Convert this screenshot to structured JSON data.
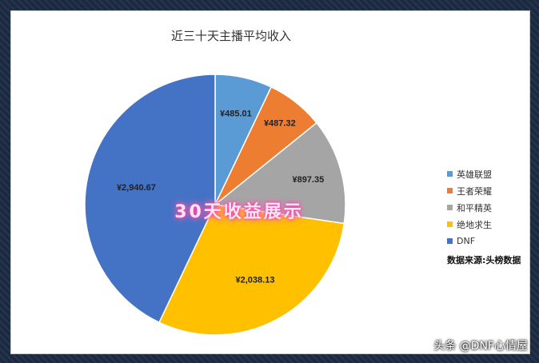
{
  "chart_data": {
    "type": "pie",
    "title": "近三十天主播平均收入",
    "categories": [
      "英雄联盟",
      "王者荣耀",
      "和平精英",
      "绝地求生",
      "DNF"
    ],
    "values": [
      485.01,
      487.32,
      897.35,
      2038.13,
      2940.67
    ],
    "value_labels": [
      "¥485.01",
      "¥487.32",
      "¥897.35",
      "¥2,038.13",
      "¥2,940.67"
    ],
    "colors": [
      "#5b9bd5",
      "#ed7d31",
      "#a5a5a5",
      "#ffc000",
      "#4472c4"
    ],
    "legend_position": "right"
  },
  "source_note": "数据来源:头榜数据",
  "overlay_caption": "30天收益展示",
  "corner_watermark": "头条 @DNF心情屋"
}
